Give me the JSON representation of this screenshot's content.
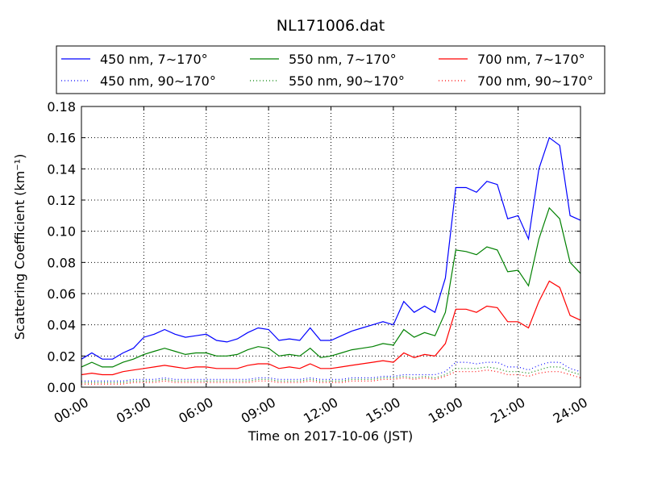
{
  "chart_data": {
    "type": "line",
    "title": "NL171006.dat",
    "xlabel": "Time on 2017-10-06 (JST)",
    "ylabel": "Scattering Coefficient (km⁻¹)",
    "x": [
      0,
      0.5,
      1,
      1.5,
      2,
      2.5,
      3,
      3.5,
      4,
      4.5,
      5,
      5.5,
      6,
      6.5,
      7,
      7.5,
      8,
      8.5,
      9,
      9.5,
      10,
      10.5,
      11,
      11.5,
      12,
      12.5,
      13,
      13.5,
      14,
      14.5,
      15,
      15.5,
      16,
      16.5,
      17,
      17.5,
      18,
      18.5,
      19,
      19.5,
      20,
      20.5,
      21,
      21.5,
      22,
      22.5,
      23,
      23.5,
      24
    ],
    "series": [
      {
        "name": "450 nm, 7∼170°",
        "color": "#0000ff",
        "linestyle": "solid",
        "values": [
          0.018,
          0.022,
          0.018,
          0.018,
          0.022,
          0.025,
          0.032,
          0.034,
          0.037,
          0.034,
          0.032,
          0.033,
          0.034,
          0.03,
          0.029,
          0.031,
          0.035,
          0.038,
          0.037,
          0.03,
          0.031,
          0.03,
          0.038,
          0.03,
          0.03,
          0.033,
          0.036,
          0.038,
          0.04,
          0.042,
          0.04,
          0.055,
          0.048,
          0.052,
          0.048,
          0.07,
          0.128,
          0.128,
          0.125,
          0.132,
          0.13,
          0.108,
          0.11,
          0.095,
          0.14,
          0.16,
          0.155,
          0.11,
          0.107
        ]
      },
      {
        "name": "450 nm, 90∼170°",
        "color": "#0000ff",
        "linestyle": "dotted",
        "values": [
          0.004,
          0.004,
          0.004,
          0.004,
          0.004,
          0.005,
          0.005,
          0.005,
          0.006,
          0.005,
          0.005,
          0.005,
          0.005,
          0.005,
          0.005,
          0.005,
          0.005,
          0.006,
          0.006,
          0.005,
          0.005,
          0.005,
          0.006,
          0.005,
          0.005,
          0.005,
          0.006,
          0.006,
          0.006,
          0.007,
          0.007,
          0.008,
          0.008,
          0.008,
          0.008,
          0.01,
          0.016,
          0.016,
          0.015,
          0.016,
          0.016,
          0.013,
          0.013,
          0.011,
          0.014,
          0.016,
          0.016,
          0.012,
          0.01
        ]
      },
      {
        "name": "550 nm, 7∼170°",
        "color": "#008000",
        "linestyle": "solid",
        "values": [
          0.013,
          0.016,
          0.013,
          0.013,
          0.016,
          0.018,
          0.021,
          0.023,
          0.025,
          0.023,
          0.021,
          0.022,
          0.022,
          0.02,
          0.02,
          0.021,
          0.024,
          0.026,
          0.025,
          0.02,
          0.021,
          0.02,
          0.025,
          0.019,
          0.02,
          0.022,
          0.024,
          0.025,
          0.026,
          0.028,
          0.027,
          0.037,
          0.032,
          0.035,
          0.033,
          0.048,
          0.088,
          0.087,
          0.085,
          0.09,
          0.088,
          0.074,
          0.075,
          0.065,
          0.095,
          0.115,
          0.108,
          0.08,
          0.073
        ]
      },
      {
        "name": "550 nm, 90∼170°",
        "color": "#008000",
        "linestyle": "dotted",
        "values": [
          0.003,
          0.003,
          0.003,
          0.003,
          0.003,
          0.004,
          0.004,
          0.004,
          0.005,
          0.004,
          0.004,
          0.004,
          0.004,
          0.004,
          0.004,
          0.004,
          0.004,
          0.005,
          0.005,
          0.004,
          0.004,
          0.004,
          0.005,
          0.004,
          0.004,
          0.004,
          0.005,
          0.005,
          0.005,
          0.006,
          0.006,
          0.007,
          0.006,
          0.007,
          0.006,
          0.008,
          0.012,
          0.012,
          0.012,
          0.013,
          0.012,
          0.01,
          0.01,
          0.009,
          0.011,
          0.013,
          0.013,
          0.01,
          0.008
        ]
      },
      {
        "name": "700 nm, 7∼170°",
        "color": "#ff0000",
        "linestyle": "solid",
        "values": [
          0.008,
          0.009,
          0.008,
          0.008,
          0.01,
          0.011,
          0.012,
          0.013,
          0.014,
          0.013,
          0.012,
          0.013,
          0.013,
          0.012,
          0.012,
          0.012,
          0.014,
          0.015,
          0.015,
          0.012,
          0.013,
          0.012,
          0.015,
          0.012,
          0.012,
          0.013,
          0.014,
          0.015,
          0.016,
          0.017,
          0.016,
          0.022,
          0.019,
          0.021,
          0.02,
          0.028,
          0.05,
          0.05,
          0.048,
          0.052,
          0.051,
          0.042,
          0.042,
          0.038,
          0.055,
          0.068,
          0.064,
          0.046,
          0.043
        ]
      },
      {
        "name": "700 nm, 90∼170°",
        "color": "#ff0000",
        "linestyle": "dotted",
        "values": [
          0.002,
          0.002,
          0.002,
          0.002,
          0.002,
          0.003,
          0.003,
          0.003,
          0.004,
          0.003,
          0.003,
          0.003,
          0.003,
          0.003,
          0.003,
          0.003,
          0.003,
          0.004,
          0.004,
          0.003,
          0.003,
          0.003,
          0.004,
          0.003,
          0.003,
          0.003,
          0.004,
          0.004,
          0.004,
          0.005,
          0.005,
          0.006,
          0.005,
          0.006,
          0.005,
          0.007,
          0.01,
          0.01,
          0.01,
          0.011,
          0.01,
          0.008,
          0.008,
          0.007,
          0.009,
          0.01,
          0.01,
          0.008,
          0.006
        ]
      }
    ],
    "xlim": [
      0,
      24
    ],
    "xticks": [
      {
        "value": 0,
        "label": "00:00"
      },
      {
        "value": 3,
        "label": "03:00"
      },
      {
        "value": 6,
        "label": "06:00"
      },
      {
        "value": 9,
        "label": "09:00"
      },
      {
        "value": 12,
        "label": "12:00"
      },
      {
        "value": 15,
        "label": "15:00"
      },
      {
        "value": 18,
        "label": "18:00"
      },
      {
        "value": 21,
        "label": "21:00"
      },
      {
        "value": 24,
        "label": "24:00"
      }
    ],
    "ylim": [
      0,
      0.18
    ],
    "yticks": [
      {
        "value": 0,
        "label": "0.00"
      },
      0.02,
      0.04,
      0.06,
      0.08,
      {
        "value": 0.1,
        "label": "0.10"
      },
      0.12,
      0.14,
      0.16,
      0.18
    ],
    "grid": true,
    "legend": "top"
  }
}
